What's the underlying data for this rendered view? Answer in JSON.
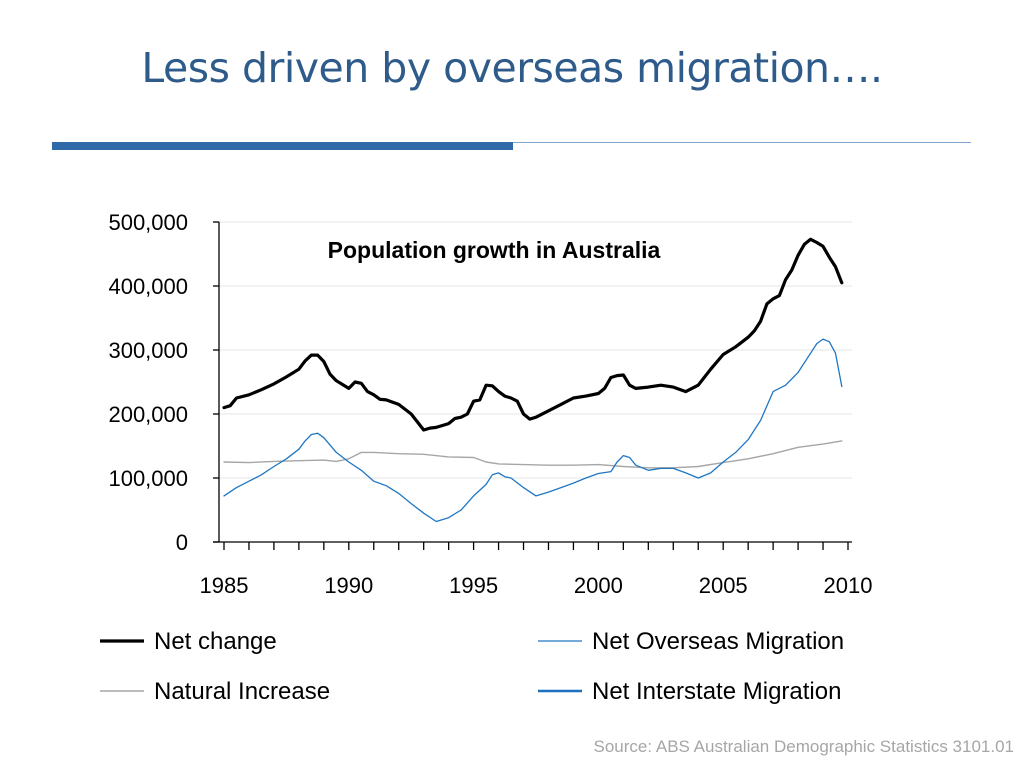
{
  "slide": {
    "title": "Less driven by overseas migration….",
    "source": "Source: ABS Australian Demographic Statistics 3101.01"
  },
  "colors": {
    "title": "#2e5b8a",
    "accent_rule": "#2f6aa8",
    "net_change": "#000000",
    "net_overseas_migration": "#1f77c4",
    "natural_increase": "#a6a6a6",
    "net_interstate_migration": "#1f6fbf"
  },
  "chart_data": {
    "type": "line",
    "title": "Population growth in Australia",
    "xlabel": "",
    "ylabel": "",
    "xlim": [
      1985,
      2010
    ],
    "ylim": [
      0,
      500000
    ],
    "x_ticks": [
      "1985",
      "1990",
      "1995",
      "2000",
      "2005",
      "2010"
    ],
    "y_ticks": [
      "0",
      "100,000",
      "200,000",
      "300,000",
      "400,000",
      "500,000"
    ],
    "grid": "horizontal",
    "legend_position": "bottom",
    "series": [
      {
        "name": "Net change",
        "color": "#000000",
        "x": [
          1985.0,
          1985.25,
          1985.5,
          1986.0,
          1986.5,
          1987.0,
          1987.5,
          1988.0,
          1988.25,
          1988.5,
          1988.75,
          1989.0,
          1989.25,
          1989.5,
          1990.0,
          1990.25,
          1990.5,
          1990.75,
          1991.0,
          1991.25,
          1991.5,
          1992.0,
          1992.5,
          1993.0,
          1993.25,
          1993.5,
          1994.0,
          1994.25,
          1994.5,
          1994.75,
          1995.0,
          1995.25,
          1995.5,
          1995.75,
          1996.0,
          1996.25,
          1996.5,
          1996.75,
          1997.0,
          1997.25,
          1997.5,
          1998.0,
          1998.5,
          1999.0,
          1999.5,
          2000.0,
          2000.25,
          2000.5,
          2000.75,
          2001.0,
          2001.25,
          2001.5,
          2002.0,
          2002.5,
          2003.0,
          2003.5,
          2004.0,
          2004.5,
          2005.0,
          2005.5,
          2006.0,
          2006.25,
          2006.5,
          2006.75,
          2007.0,
          2007.25,
          2007.5,
          2007.75,
          2008.0,
          2008.25,
          2008.5,
          2008.75,
          2009.0,
          2009.25,
          2009.5,
          2009.75
        ],
        "values": [
          210000,
          213000,
          225000,
          230000,
          238000,
          247000,
          258000,
          270000,
          283000,
          292000,
          292000,
          282000,
          262000,
          252000,
          240000,
          250000,
          248000,
          235000,
          230000,
          223000,
          222000,
          215000,
          200000,
          175000,
          178000,
          179000,
          185000,
          193000,
          195000,
          200000,
          220000,
          222000,
          245000,
          244000,
          235000,
          228000,
          225000,
          220000,
          200000,
          192000,
          195000,
          205000,
          215000,
          225000,
          228000,
          232000,
          240000,
          257000,
          260000,
          261000,
          245000,
          240000,
          242000,
          245000,
          242000,
          235000,
          245000,
          270000,
          293000,
          305000,
          320000,
          330000,
          345000,
          372000,
          380000,
          385000,
          410000,
          425000,
          448000,
          465000,
          473000,
          468000,
          462000,
          445000,
          430000,
          405000
        ]
      },
      {
        "name": "Net Overseas Migration",
        "color": "#1f77c4",
        "x": [
          1985.0,
          1985.5,
          1986.0,
          1986.5,
          1987.0,
          1987.5,
          1988.0,
          1988.25,
          1988.5,
          1988.75,
          1989.0,
          1989.5,
          1990.0,
          1990.5,
          1991.0,
          1991.5,
          1992.0,
          1992.5,
          1993.0,
          1993.5,
          1994.0,
          1994.5,
          1995.0,
          1995.5,
          1995.75,
          1996.0,
          1996.25,
          1996.5,
          1997.0,
          1997.5,
          1998.0,
          1998.5,
          1999.0,
          1999.5,
          2000.0,
          2000.5,
          2000.75,
          2001.0,
          2001.25,
          2001.5,
          2002.0,
          2002.5,
          2003.0,
          2003.5,
          2004.0,
          2004.5,
          2005.0,
          2005.5,
          2006.0,
          2006.5,
          2007.0,
          2007.5,
          2008.0,
          2008.5,
          2008.75,
          2009.0,
          2009.25,
          2009.5,
          2009.75
        ],
        "values": [
          72000,
          85000,
          95000,
          105000,
          118000,
          130000,
          145000,
          158000,
          168000,
          170000,
          163000,
          140000,
          125000,
          112000,
          95000,
          88000,
          76000,
          60000,
          45000,
          32000,
          38000,
          50000,
          72000,
          90000,
          105000,
          108000,
          102000,
          100000,
          85000,
          72000,
          78000,
          85000,
          92000,
          100000,
          107000,
          110000,
          125000,
          135000,
          132000,
          120000,
          112000,
          115000,
          115000,
          108000,
          100000,
          108000,
          125000,
          140000,
          160000,
          190000,
          235000,
          245000,
          265000,
          295000,
          310000,
          317000,
          313000,
          295000,
          243000
        ]
      },
      {
        "name": "Natural Increase",
        "color": "#a6a6a6",
        "x": [
          1985.0,
          1986.0,
          1987.0,
          1988.0,
          1989.0,
          1989.5,
          1990.0,
          1990.5,
          1991.0,
          1992.0,
          1993.0,
          1994.0,
          1995.0,
          1995.5,
          1996.0,
          1997.0,
          1998.0,
          1999.0,
          2000.0,
          2001.0,
          2002.0,
          2003.0,
          2004.0,
          2005.0,
          2006.0,
          2007.0,
          2008.0,
          2009.0,
          2009.75
        ],
        "values": [
          125000,
          124000,
          126000,
          127000,
          128000,
          126000,
          130000,
          140000,
          140000,
          138000,
          137000,
          133000,
          132000,
          125000,
          122000,
          121000,
          120000,
          120000,
          121000,
          118000,
          116000,
          116000,
          118000,
          124000,
          130000,
          138000,
          148000,
          153000,
          158000
        ]
      },
      {
        "name": "Net Interstate Migration",
        "color": "#1f6fbf",
        "x": [],
        "values": []
      }
    ]
  }
}
